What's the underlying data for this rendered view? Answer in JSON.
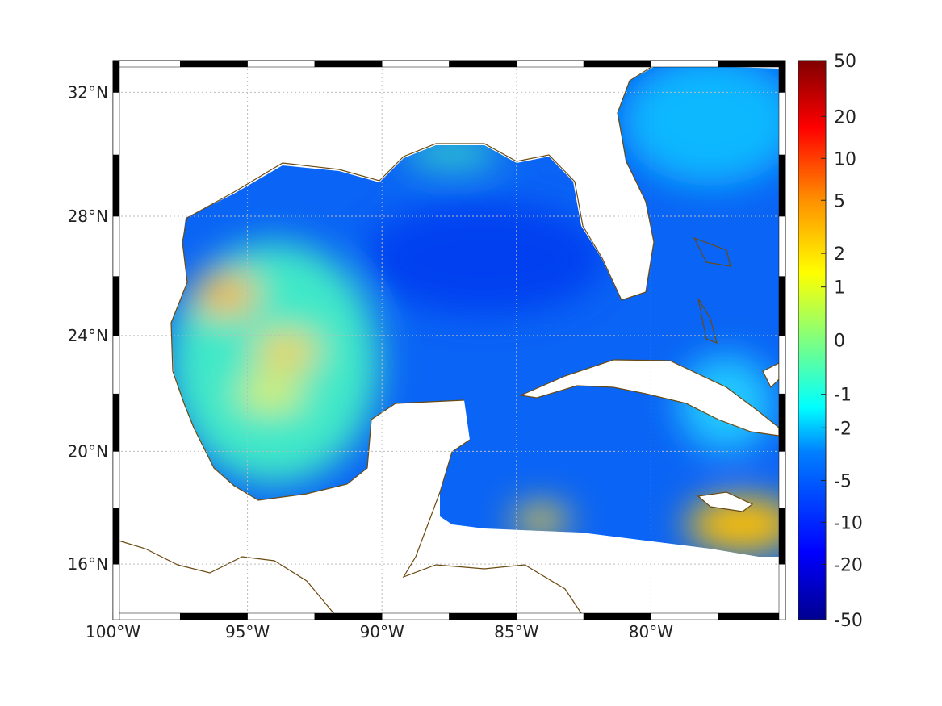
{
  "map": {
    "projection": "mercator",
    "lon_range": [
      -100,
      -75
    ],
    "lat_range": [
      14,
      33
    ],
    "lon_ticks": [
      {
        "value": -100,
        "label": "100°W"
      },
      {
        "value": -95,
        "label": "95°W"
      },
      {
        "value": -90,
        "label": "90°W"
      },
      {
        "value": -85,
        "label": "85°W"
      },
      {
        "value": -80,
        "label": "80°W"
      }
    ],
    "lat_ticks": [
      {
        "value": 32,
        "label": "32°N"
      },
      {
        "value": 28,
        "label": "28°N"
      },
      {
        "value": 24,
        "label": "24°N"
      },
      {
        "value": 20,
        "label": "20°N"
      },
      {
        "value": 16,
        "label": "16°N"
      }
    ],
    "coast_color": "#6b4a10"
  },
  "colorbar": {
    "colormap": "jet",
    "ticks": [
      "50",
      "20",
      "10",
      "5",
      "2",
      "1",
      "0",
      "-1",
      "-2",
      "-5",
      "-10",
      "-20",
      "-50"
    ],
    "tick_fractions": [
      1.0,
      0.9,
      0.825,
      0.75,
      0.655,
      0.595,
      0.5,
      0.403,
      0.343,
      0.249,
      0.174,
      0.099,
      0.0
    ]
  }
}
